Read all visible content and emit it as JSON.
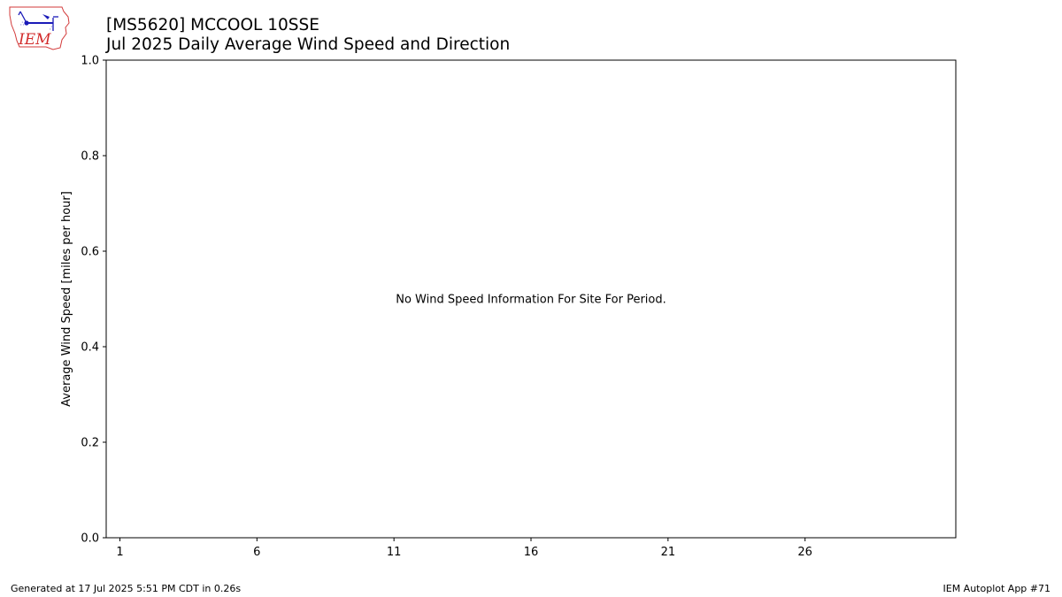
{
  "header": {
    "title_line1": "[MS5620] MCCOOL 10SSE",
    "title_line2": "Jul 2025 Daily Average Wind Speed and Direction"
  },
  "logo": {
    "text": "IEM",
    "icon": "iem-iowa-logo-icon",
    "colors": {
      "outline": "#d33a3a",
      "text": "#d22b2b",
      "glyph": "#1a1ab8"
    }
  },
  "chart_data": {
    "type": "bar",
    "title": "",
    "xlabel": "",
    "ylabel": "Average Wind Speed [miles per hour]",
    "xlim": [
      0,
      31
    ],
    "ylim": [
      0,
      1
    ],
    "xticks": [
      1,
      6,
      11,
      16,
      21,
      26
    ],
    "yticks": [
      0.0,
      0.2,
      0.4,
      0.6,
      0.8,
      1.0
    ],
    "ytick_labels": [
      "0.0",
      "0.2",
      "0.4",
      "0.6",
      "0.8",
      "1.0"
    ],
    "series": [],
    "grid": false,
    "annotation": "No Wind Speed Information For Site For Period."
  },
  "footer": {
    "left": "Generated at 17 Jul 2025 5:51 PM CDT in 0.26s",
    "right": "IEM Autoplot App #71"
  }
}
